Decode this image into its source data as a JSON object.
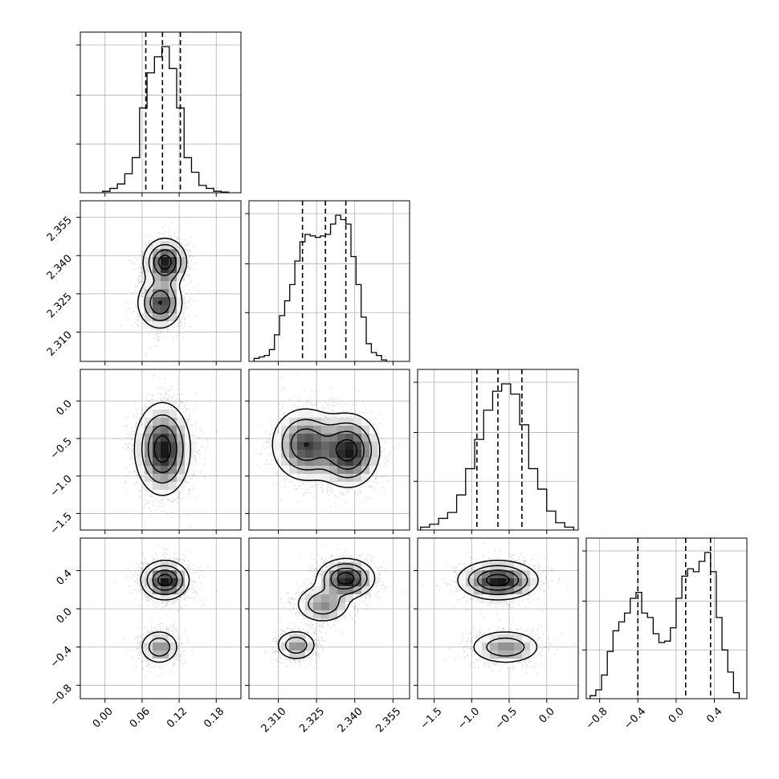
{
  "chart_data": {
    "type": "corner",
    "title": "",
    "params": [
      {
        "label": "",
        "range": [
          -0.04,
          0.22
        ],
        "ticks": [
          0.0,
          0.06,
          0.12,
          0.18
        ],
        "tick_labels": [
          "0.00",
          "0.06",
          "0.12",
          "0.18"
        ],
        "quantiles": [
          0.066,
          0.093,
          0.122
        ]
      },
      {
        "label": "",
        "range": [
          2.2985,
          2.3615
        ],
        "ticks": [
          2.31,
          2.325,
          2.34,
          2.355
        ],
        "tick_labels": [
          "2.310",
          "2.325",
          "2.340",
          "2.355"
        ],
        "quantiles": [
          2.3195,
          2.3285,
          2.3365
        ]
      },
      {
        "label": "",
        "range": [
          -1.72,
          0.42
        ],
        "ticks": [
          -1.5,
          -1.0,
          -0.5,
          0.0
        ],
        "tick_labels": [
          "−1.5",
          "−1.0",
          "−0.5",
          "0.0"
        ],
        "quantiles": [
          -0.93,
          -0.65,
          -0.33
        ]
      },
      {
        "label": "",
        "range": [
          -0.94,
          0.74
        ],
        "ticks": [
          -0.8,
          -0.4,
          0.0,
          0.4
        ],
        "tick_labels": [
          "−0.8",
          "−0.4",
          "0.0",
          "0.4"
        ],
        "quantiles": [
          -0.4,
          0.1,
          0.36
        ]
      }
    ],
    "histograms": [
      {
        "param": 0,
        "bin_edges": [
          -0.004,
          0.008,
          0.02,
          0.032,
          0.044,
          0.056,
          0.068,
          0.08,
          0.092,
          0.104,
          0.116,
          0.128,
          0.14,
          0.152,
          0.164,
          0.176,
          0.188,
          0.2
        ],
        "counts": [
          0.01,
          0.03,
          0.06,
          0.13,
          0.24,
          0.58,
          0.82,
          0.93,
          1.0,
          0.85,
          0.58,
          0.24,
          0.14,
          0.05,
          0.03,
          0.01,
          0.005
        ]
      },
      {
        "param": 1,
        "bin_edges": [
          2.3005,
          2.3025,
          2.3045,
          2.3065,
          2.3085,
          2.3105,
          2.3125,
          2.3145,
          2.3165,
          2.3185,
          2.3205,
          2.3225,
          2.3245,
          2.3265,
          2.3285,
          2.3305,
          2.3325,
          2.3345,
          2.3365,
          2.3385,
          2.3405,
          2.3425,
          2.3445,
          2.3465,
          2.3485,
          2.3505,
          2.3525
        ],
        "counts": [
          0.02,
          0.03,
          0.04,
          0.08,
          0.18,
          0.31,
          0.41,
          0.52,
          0.68,
          0.81,
          0.86,
          0.85,
          0.84,
          0.85,
          0.86,
          0.93,
          0.99,
          0.96,
          0.93,
          0.71,
          0.52,
          0.3,
          0.12,
          0.06,
          0.04,
          0.01
        ]
      },
      {
        "param": 2,
        "bin_edges": [
          -1.68,
          -1.56,
          -1.44,
          -1.32,
          -1.2,
          -1.08,
          -0.96,
          -0.84,
          -0.72,
          -0.6,
          -0.48,
          -0.36,
          -0.24,
          -0.12,
          0.0,
          0.12,
          0.24,
          0.36
        ],
        "counts": [
          0.02,
          0.04,
          0.08,
          0.12,
          0.24,
          0.42,
          0.62,
          0.82,
          0.95,
          1.0,
          0.93,
          0.72,
          0.42,
          0.28,
          0.13,
          0.05,
          0.02
        ]
      },
      {
        "param": 3,
        "bin_edges": [
          -0.9,
          -0.84,
          -0.78,
          -0.72,
          -0.66,
          -0.6,
          -0.54,
          -0.48,
          -0.42,
          -0.36,
          -0.3,
          -0.24,
          -0.18,
          -0.12,
          -0.06,
          0.0,
          0.06,
          0.12,
          0.18,
          0.24,
          0.3,
          0.36,
          0.42,
          0.48,
          0.54,
          0.6,
          0.66
        ],
        "counts": [
          0.02,
          0.06,
          0.16,
          0.32,
          0.46,
          0.52,
          0.58,
          0.68,
          0.72,
          0.58,
          0.55,
          0.44,
          0.38,
          0.39,
          0.48,
          0.68,
          0.83,
          0.88,
          0.86,
          0.93,
          0.99,
          0.86,
          0.55,
          0.33,
          0.18,
          0.04
        ]
      }
    ],
    "density_panels": [
      {
        "x_param": 0,
        "y_param": 1,
        "modes": [
          {
            "x": 0.097,
            "y": 2.3375,
            "sx": 0.017,
            "sy": 0.0045,
            "w": 1.0
          },
          {
            "x": 0.089,
            "y": 2.3215,
            "sx": 0.018,
            "sy": 0.005,
            "w": 0.85
          }
        ]
      },
      {
        "x_param": 0,
        "y_param": 2,
        "modes": [
          {
            "x": 0.093,
            "y": -0.64,
            "sx": 0.022,
            "sy": 0.3,
            "w": 1.0
          }
        ]
      },
      {
        "x_param": 1,
        "y_param": 2,
        "modes": [
          {
            "x": 2.3205,
            "y": -0.58,
            "sx": 0.0065,
            "sy": 0.24,
            "w": 0.85
          },
          {
            "x": 2.3375,
            "y": -0.66,
            "sx": 0.006,
            "sy": 0.24,
            "w": 1.0
          }
        ]
      },
      {
        "x_param": 0,
        "y_param": 3,
        "modes": [
          {
            "x": 0.097,
            "y": 0.3,
            "sx": 0.019,
            "sy": 0.1,
            "w": 1.0
          },
          {
            "x": 0.088,
            "y": -0.4,
            "sx": 0.016,
            "sy": 0.09,
            "w": 0.55
          }
        ]
      },
      {
        "x_param": 1,
        "y_param": 3,
        "modes": [
          {
            "x": 2.3365,
            "y": 0.32,
            "sx": 0.0055,
            "sy": 0.1,
            "w": 1.0
          },
          {
            "x": 2.3275,
            "y": 0.05,
            "sx": 0.0055,
            "sy": 0.1,
            "w": 0.55
          },
          {
            "x": 2.317,
            "y": -0.38,
            "sx": 0.004,
            "sy": 0.08,
            "w": 0.55
          }
        ]
      },
      {
        "x_param": 2,
        "y_param": 3,
        "modes": [
          {
            "x": -0.65,
            "y": 0.3,
            "sx": 0.26,
            "sy": 0.1,
            "w": 1.0
          },
          {
            "x": -0.55,
            "y": -0.4,
            "sx": 0.24,
            "sy": 0.09,
            "w": 0.55
          }
        ]
      }
    ],
    "contour_levels": [
      0.12,
      0.32,
      0.58,
      0.84
    ],
    "grid": true,
    "legend": "none"
  }
}
